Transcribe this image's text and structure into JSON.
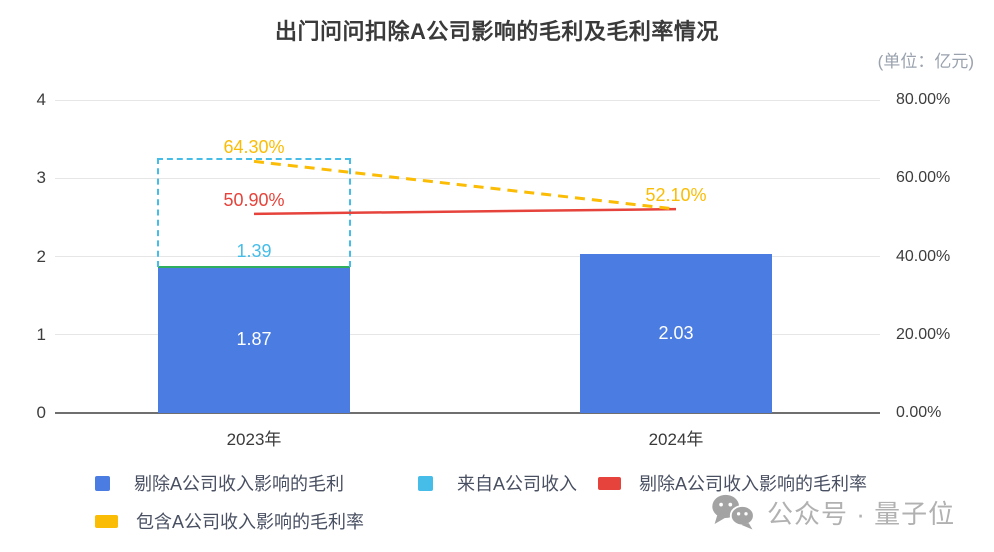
{
  "chart_data": {
    "type": "bar",
    "title": "出门问问扣除A公司影响的毛利及毛利率情况",
    "unit_note": "(单位：亿元)",
    "categories": [
      "2023年",
      "2024年"
    ],
    "left_axis": {
      "min": 0,
      "max": 4,
      "tick_labels": [
        "0",
        "1",
        "2",
        "3",
        "4"
      ],
      "grid": true
    },
    "right_axis": {
      "min_pct": 0,
      "max_pct": 80,
      "tick_labels": [
        "0.00%",
        "20.00%",
        "40.00%",
        "60.00%",
        "80.00%"
      ]
    },
    "bar_series": [
      {
        "name": "剔除A公司收入影响的毛利",
        "color": "#4a7ce2",
        "values": [
          1.87,
          2.03
        ],
        "value_labels": [
          "1.87",
          "2.03"
        ]
      },
      {
        "name": "来自A公司收入",
        "color": "#45bde8",
        "render": "dashed-outline-stacked",
        "values": [
          1.39,
          null
        ],
        "value_labels": [
          "1.39",
          null
        ]
      }
    ],
    "line_series": [
      {
        "name": "剔除A公司收入影响的毛利率",
        "color": "#e5433b",
        "dash": false,
        "values_pct": [
          50.9,
          52.1
        ],
        "point_labels": [
          "50.90%",
          null
        ]
      },
      {
        "name": "包含A公司收入影响的毛利率",
        "color": "#fbbc05",
        "dash": true,
        "values_pct": [
          64.3,
          52.1
        ],
        "point_labels": [
          "64.30%",
          "52.10%"
        ]
      }
    ],
    "bar_top_accent": {
      "category_index": 0,
      "color": "#2fae5e"
    },
    "legend_position": "bottom"
  },
  "legend": [
    {
      "label": "剔除A公司收入影响的毛利",
      "color": "#4a7ce2",
      "swatch": "square"
    },
    {
      "label": "来自A公司收入",
      "color": "#45bde8",
      "swatch": "square"
    },
    {
      "label": "剔除A公司收入影响的毛利率",
      "color": "#e5433b",
      "swatch": "rect"
    },
    {
      "label": "包含A公司收入影响的毛利率",
      "color": "#fbbc05",
      "swatch": "rect"
    }
  ],
  "watermark": {
    "icon": "wechat-icon",
    "text": "公众号 · 量子位"
  }
}
